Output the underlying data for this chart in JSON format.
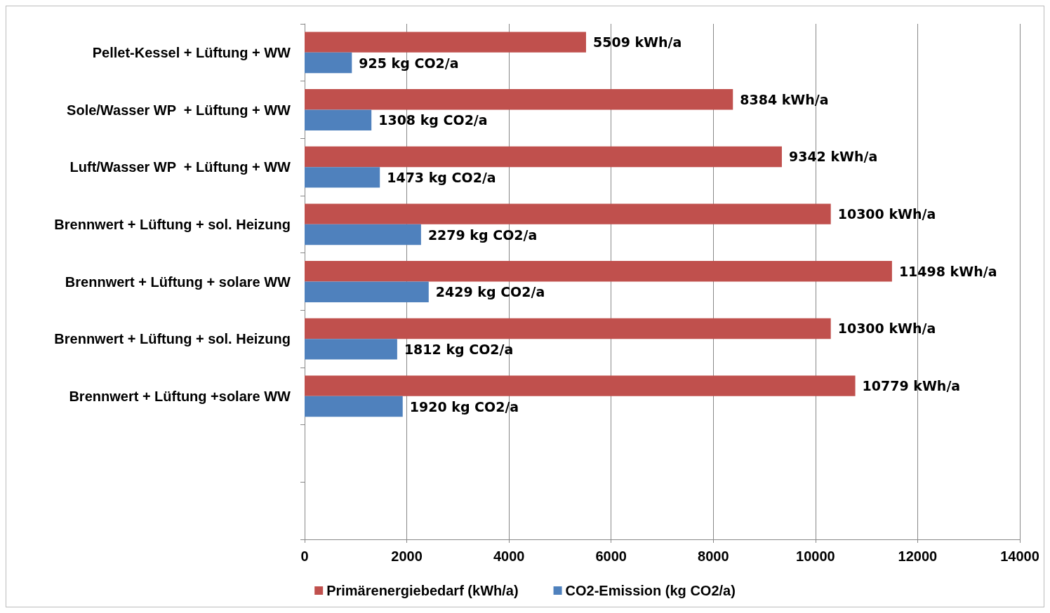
{
  "chart_data": {
    "type": "bar",
    "orientation": "horizontal",
    "categories": [
      "Pellet-Kessel + Lüftung + WW",
      "Sole/Wasser WP  + Lüftung + WW",
      "Luft/Wasser WP  + Lüftung + WW",
      "Brennwert + Lüftung + sol. Heizung",
      "Brennwert + Lüftung + solare WW",
      "Brennwert + Lüftung + sol. Heizung",
      "Brennwert + Lüftung +solare WW",
      null,
      null
    ],
    "series": [
      {
        "name": "Primärenergiebedarf (kWh/a)",
        "color": "#c0504d",
        "values": [
          5509,
          8384,
          9342,
          10300,
          11498,
          10300,
          10779,
          null,
          null
        ],
        "value_labels": [
          "5509 kWh/a",
          "8384 kWh/a",
          "9342 kWh/a",
          "10300 kWh/a",
          "11498 kWh/a",
          "10300 kWh/a",
          "10779 kWh/a",
          null,
          null
        ]
      },
      {
        "name": "CO2-Emission (kg CO2/a)",
        "color": "#4f81bd",
        "values": [
          925,
          1308,
          1473,
          2279,
          2429,
          1812,
          1920,
          null,
          null
        ],
        "value_labels": [
          "925 kg CO2/a",
          "1308 kg CO2/a",
          "1473 kg CO2/a",
          "2279 kg CO2/a",
          "2429 kg CO2/a",
          "1812 kg CO2/a",
          "1920 kg CO2/a",
          null,
          null
        ]
      }
    ],
    "xlim": [
      0,
      14000
    ],
    "xticks": [
      0,
      2000,
      4000,
      6000,
      8000,
      10000,
      12000,
      14000
    ],
    "grid": "x",
    "legend": "bottom"
  }
}
